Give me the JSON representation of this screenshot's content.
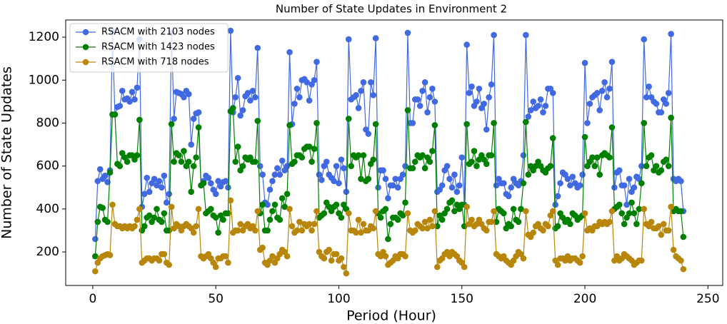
{
  "chart_data": {
    "type": "line",
    "title": "Number of State Updates in Environment 2",
    "x_label": "Period (Hour)",
    "y_label": "Number of State Updates",
    "xlim": [
      -11,
      256
    ],
    "ylim": [
      44,
      1280
    ],
    "xticks": [
      0,
      50,
      100,
      150,
      200,
      250
    ],
    "yticks": [
      200,
      400,
      600,
      800,
      1000,
      1200
    ],
    "legend": "upper left",
    "x": [
      1,
      2,
      3,
      4,
      5,
      6,
      7,
      8,
      9,
      10,
      11,
      12,
      13,
      14,
      15,
      16,
      17,
      18,
      19,
      20,
      21,
      22,
      23,
      24,
      25,
      26,
      27,
      28,
      29,
      30,
      31,
      32,
      33,
      34,
      35,
      36,
      37,
      38,
      39,
      40,
      41,
      42,
      43,
      44,
      45,
      46,
      47,
      48,
      49,
      50,
      51,
      52,
      53,
      54,
      55,
      56,
      57,
      58,
      59,
      60,
      61,
      62,
      63,
      64,
      65,
      66,
      67,
      68,
      69,
      70,
      71,
      72,
      73,
      74,
      75,
      76,
      77,
      78,
      79,
      80,
      81,
      82,
      83,
      84,
      85,
      86,
      87,
      88,
      89,
      90,
      91,
      92,
      93,
      94,
      95,
      96,
      97,
      98,
      99,
      100,
      101,
      102,
      103,
      104,
      105,
      106,
      107,
      108,
      109,
      110,
      111,
      112,
      113,
      114,
      115,
      116,
      117,
      118,
      119,
      120,
      121,
      122,
      123,
      124,
      125,
      126,
      127,
      128,
      129,
      130,
      131,
      132,
      133,
      134,
      135,
      136,
      137,
      138,
      139,
      140,
      141,
      142,
      143,
      144,
      145,
      146,
      147,
      148,
      149,
      150,
      151,
      152,
      153,
      154,
      155,
      156,
      157,
      158,
      159,
      160,
      161,
      162,
      163,
      164,
      165,
      166,
      167,
      168,
      169,
      170,
      171,
      172,
      173,
      174,
      175,
      176,
      177,
      178,
      179,
      180,
      181,
      182,
      183,
      184,
      185,
      186,
      187,
      188,
      189,
      190,
      191,
      192,
      193,
      194,
      195,
      196,
      197,
      198,
      199,
      200,
      201,
      202,
      203,
      204,
      205,
      206,
      207,
      208,
      209,
      210,
      211,
      212,
      213,
      214,
      215,
      216,
      217,
      218,
      219,
      220,
      221,
      222,
      223,
      224,
      225,
      226,
      227,
      228,
      229,
      230,
      231,
      232,
      233,
      234,
      235,
      236,
      237,
      238,
      239,
      240
    ],
    "series": [
      {
        "name": "RSACM with 2103 nodes",
        "color": "#4169e1",
        "values": [
          260,
          530,
          585,
          540,
          555,
          525,
          580,
          1230,
          840,
          875,
          880,
          950,
          910,
          915,
          900,
          945,
          910,
          965,
          1190,
          410,
          470,
          545,
          480,
          520,
          540,
          510,
          530,
          500,
          555,
          430,
          470,
          1220,
          820,
          945,
          940,
          935,
          920,
          950,
          935,
          700,
          820,
          845,
          850,
          510,
          530,
          555,
          545,
          520,
          490,
          470,
          530,
          505,
          525,
          530,
          500,
          1230,
          850,
          920,
          1010,
          835,
          860,
          925,
          940,
          905,
          950,
          920,
          1150,
          600,
          560,
          430,
          420,
          490,
          530,
          560,
          590,
          560,
          625,
          580,
          600,
          1130,
          795,
          890,
          960,
          920,
          1000,
          1005,
          990,
          905,
          980,
          1000,
          1085,
          560,
          535,
          600,
          620,
          560,
          545,
          530,
          600,
          520,
          630,
          590,
          480,
          1190,
          910,
          920,
          930,
          870,
          950,
          990,
          770,
          750,
          990,
          930,
          1195,
          500,
          580,
          580,
          540,
          450,
          510,
          510,
          540,
          500,
          540,
          560,
          600,
          1220,
          800,
          800,
          910,
          910,
          880,
          950,
          990,
          850,
          920,
          960,
          900,
          480,
          490,
          510,
          580,
          600,
          540,
          500,
          560,
          480,
          510,
          640,
          420,
          1165,
          940,
          970,
          880,
          900,
          960,
          870,
          890,
          770,
          920,
          980,
          1210,
          510,
          540,
          520,
          520,
          470,
          460,
          500,
          540,
          520,
          510,
          530,
          650,
          1210,
          830,
          860,
          900,
          870,
          880,
          910,
          850,
          880,
          960,
          960,
          940,
          420,
          460,
          520,
          570,
          560,
          540,
          510,
          550,
          520,
          500,
          510,
          560,
          1080,
          800,
          890,
          920,
          930,
          940,
          860,
          950,
          990,
          920,
          960,
          1085,
          500,
          570,
          580,
          510,
          510,
          420,
          540,
          480,
          500,
          550,
          540,
          600,
          1190,
          920,
          970,
          920,
          900,
          890,
          850,
          850,
          910,
          890,
          940,
          1215,
          540,
          530,
          540,
          530,
          390
        ]
      },
      {
        "name": "RSACM with 1423 nodes",
        "color": "#008000",
        "values": [
          180,
          340,
          410,
          405,
          350,
          340,
          570,
          840,
          840,
          610,
          600,
          660,
          640,
          620,
          650,
          650,
          630,
          650,
          815,
          300,
          320,
          360,
          370,
          340,
          360,
          400,
          350,
          340,
          380,
          300,
          300,
          795,
          620,
          660,
          650,
          620,
          670,
          600,
          620,
          480,
          600,
          640,
          780,
          510,
          520,
          380,
          390,
          400,
          370,
          360,
          290,
          370,
          350,
          380,
          380,
          855,
          870,
          620,
          690,
          580,
          600,
          640,
          630,
          640,
          620,
          620,
          810,
          380,
          420,
          300,
          300,
          350,
          390,
          420,
          360,
          350,
          450,
          410,
          470,
          790,
          610,
          620,
          650,
          650,
          640,
          680,
          690,
          690,
          620,
          680,
          800,
          360,
          370,
          380,
          430,
          410,
          390,
          410,
          420,
          380,
          360,
          420,
          400,
          820,
          600,
          650,
          640,
          650,
          540,
          650,
          530,
          540,
          610,
          630,
          795,
          380,
          360,
          390,
          400,
          260,
          330,
          360,
          360,
          350,
          380,
          370,
          430,
          860,
          590,
          590,
          620,
          650,
          640,
          650,
          590,
          640,
          620,
          670,
          790,
          320,
          370,
          350,
          380,
          400,
          430,
          440,
          390,
          420,
          400,
          420,
          320,
          795,
          610,
          620,
          670,
          600,
          630,
          650,
          630,
          610,
          650,
          650,
          800,
          340,
          400,
          390,
          380,
          310,
          330,
          320,
          400,
          350,
          340,
          400,
          520,
          805,
          560,
          600,
          580,
          600,
          620,
          600,
          580,
          570,
          590,
          600,
          730,
          310,
          320,
          380,
          360,
          340,
          350,
          330,
          380,
          370,
          350,
          360,
          370,
          735,
          600,
          620,
          640,
          600,
          640,
          560,
          650,
          660,
          650,
          640,
          780,
          400,
          410,
          420,
          380,
          330,
          360,
          380,
          430,
          380,
          330,
          400,
          520,
          800,
          600,
          640,
          650,
          580,
          600,
          570,
          580,
          620,
          630,
          600,
          825,
          390,
          400,
          390,
          390,
          270
        ]
      },
      {
        "name": "RSACM with 718 nodes",
        "color": "#b8860b",
        "values": [
          110,
          150,
          170,
          180,
          185,
          190,
          185,
          420,
          330,
          320,
          320,
          310,
          320,
          310,
          320,
          310,
          320,
          350,
          400,
          150,
          160,
          170,
          170,
          160,
          170,
          170,
          160,
          190,
          190,
          150,
          140,
          410,
          310,
          330,
          320,
          300,
          320,
          330,
          320,
          310,
          290,
          320,
          400,
          180,
          170,
          180,
          190,
          170,
          150,
          130,
          170,
          170,
          180,
          180,
          150,
          440,
          290,
          300,
          300,
          330,
          300,
          320,
          330,
          310,
          320,
          300,
          390,
          210,
          220,
          150,
          140,
          160,
          180,
          150,
          170,
          190,
          210,
          200,
          180,
          400,
          320,
          290,
          300,
          340,
          300,
          330,
          320,
          330,
          300,
          330,
          390,
          200,
          180,
          170,
          200,
          210,
          160,
          190,
          190,
          160,
          170,
          130,
          100,
          380,
          300,
          300,
          290,
          350,
          290,
          330,
          300,
          300,
          320,
          310,
          390,
          190,
          180,
          200,
          180,
          140,
          150,
          160,
          180,
          170,
          190,
          190,
          180,
          380,
          300,
          290,
          300,
          330,
          320,
          310,
          340,
          310,
          350,
          320,
          390,
          130,
          160,
          170,
          190,
          200,
          180,
          200,
          190,
          180,
          160,
          150,
          130,
          410,
          330,
          350,
          320,
          330,
          350,
          330,
          310,
          300,
          340,
          340,
          390,
          190,
          180,
          170,
          180,
          160,
          150,
          140,
          160,
          180,
          200,
          190,
          170,
          390,
          280,
          270,
          290,
          320,
          330,
          310,
          300,
          330,
          320,
          370,
          390,
          160,
          140,
          170,
          170,
          160,
          180,
          160,
          170,
          170,
          160,
          150,
          180,
          380,
          300,
          310,
          300,
          320,
          320,
          340,
          330,
          340,
          330,
          340,
          390,
          160,
          180,
          160,
          170,
          190,
          180,
          170,
          160,
          140,
          150,
          160,
          160,
          400,
          330,
          320,
          340,
          310,
          310,
          320,
          280,
          330,
          300,
          300,
          410,
          210,
          180,
          170,
          160,
          120
        ]
      }
    ]
  }
}
